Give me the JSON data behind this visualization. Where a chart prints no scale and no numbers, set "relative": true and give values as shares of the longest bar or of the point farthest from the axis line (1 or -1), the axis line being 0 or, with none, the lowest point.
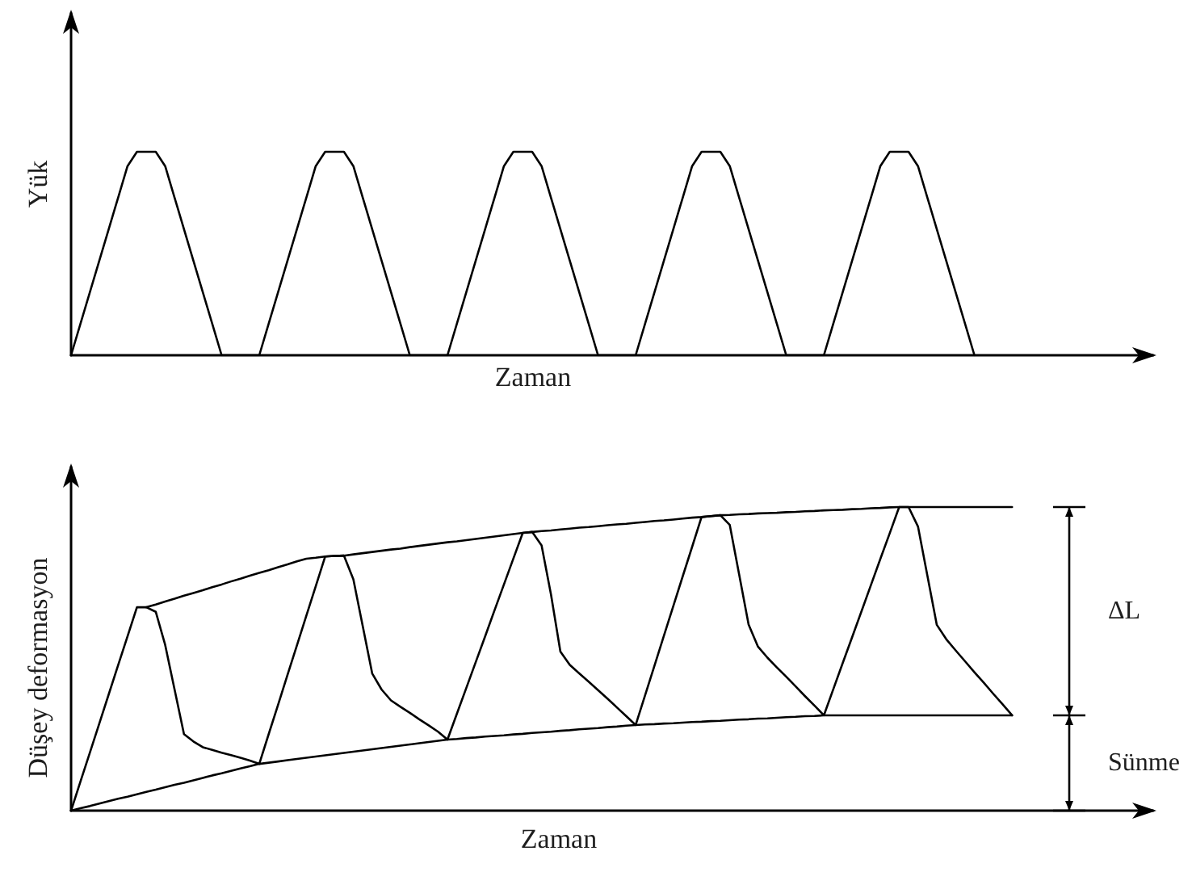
{
  "chart_data": [
    {
      "type": "line",
      "ylabel": "Yük",
      "xlabel": "Zaman",
      "relative": true,
      "tick_labels": false,
      "categories": [
        null,
        null,
        null,
        null,
        null,
        null,
        null,
        null,
        null,
        null,
        null,
        null,
        null,
        null,
        null,
        null,
        null,
        null,
        null,
        null,
        null,
        null,
        null,
        null,
        null,
        null,
        null,
        null,
        null,
        null,
        null,
        null,
        null,
        null,
        null,
        null,
        null,
        null,
        null,
        null,
        null,
        null,
        null,
        null,
        null,
        null,
        null,
        null,
        null,
        null,
        null,
        null,
        null,
        null,
        null,
        null,
        null,
        null,
        null,
        null,
        null,
        null,
        null,
        null,
        null,
        null,
        null,
        null,
        null,
        null,
        null,
        null,
        null,
        null,
        null,
        null,
        null,
        null,
        null,
        null,
        null,
        null,
        null,
        null,
        null,
        null,
        null,
        null,
        null,
        null,
        null,
        null,
        null,
        null,
        null,
        null,
        null,
        null,
        null,
        null,
        null,
        null,
        null,
        null,
        null,
        null,
        null,
        null,
        null,
        null,
        null,
        null,
        null,
        null,
        null,
        null
      ],
      "series": [
        {
          "color": "#000000",
          "values": [
            0,
            0.155,
            0.31,
            0.465,
            0.62,
            0.775,
            0.93,
            1,
            1,
            1,
            0.93,
            0.775,
            0.62,
            0.465,
            0.31,
            0.155,
            0,
            0,
            0,
            0,
            0,
            0.155,
            0.31,
            0.465,
            0.62,
            0.775,
            0.93,
            1,
            1,
            1,
            0.93,
            0.775,
            0.62,
            0.465,
            0.31,
            0.155,
            0,
            0,
            0,
            0,
            0,
            0.155,
            0.31,
            0.465,
            0.62,
            0.775,
            0.93,
            1,
            1,
            1,
            0.93,
            0.775,
            0.62,
            0.465,
            0.31,
            0.155,
            0,
            0,
            0,
            0,
            0,
            0.155,
            0.31,
            0.465,
            0.62,
            0.775,
            0.93,
            1,
            1,
            1,
            0.93,
            0.775,
            0.62,
            0.465,
            0.31,
            0.155,
            0,
            0,
            0,
            0,
            0,
            0.155,
            0.31,
            0.465,
            0.62,
            0.775,
            0.93,
            1,
            1,
            1,
            0.93,
            0.775,
            0.62,
            0.465,
            0.31,
            0.155,
            0,
            null,
            null,
            null,
            null,
            null,
            null,
            null,
            null,
            null,
            null,
            null,
            null,
            null,
            null,
            null,
            null,
            null,
            null,
            null
          ]
        }
      ]
    },
    {
      "type": "line",
      "ylabel": "Düşey deformasyon",
      "xlabel": "Zaman",
      "relative": true,
      "tick_labels": false,
      "categories": [
        null,
        null,
        null,
        null,
        null,
        null,
        null,
        null,
        null,
        null,
        null,
        null,
        null,
        null,
        null,
        null,
        null,
        null,
        null,
        null,
        null,
        null,
        null,
        null,
        null,
        null,
        null,
        null,
        null,
        null,
        null,
        null,
        null,
        null,
        null,
        null,
        null,
        null,
        null,
        null,
        null,
        null,
        null,
        null,
        null,
        null,
        null,
        null,
        null,
        null,
        null,
        null,
        null,
        null,
        null,
        null,
        null,
        null,
        null,
        null,
        null,
        null,
        null,
        null,
        null,
        null,
        null,
        null,
        null,
        null,
        null,
        null,
        null,
        null,
        null,
        null,
        null,
        null,
        null,
        null,
        null,
        null,
        null,
        null,
        null,
        null,
        null,
        null,
        null,
        null,
        null,
        null,
        null,
        null,
        null,
        null,
        null,
        null,
        null,
        null,
        null,
        null,
        null,
        null,
        null,
        null,
        null,
        null,
        null,
        null,
        null,
        null,
        null,
        null,
        null,
        null
      ],
      "annotations": [
        "ΔL",
        "Sünme"
      ],
      "series": [
        {
          "color": "#000000",
          "values": [
            null,
            null,
            null,
            null,
            null,
            null,
            null,
            null,
            0.67,
            0.679,
            0.689,
            0.698,
            0.708,
            0.717,
            0.726,
            0.736,
            0.745,
            0.755,
            0.764,
            0.774,
            0.783,
            0.792,
            0.802,
            0.811,
            0.821,
            0.83,
            0.833,
            0.837,
            0.839,
            0.84,
            0.844,
            0.848,
            0.852,
            0.856,
            0.86,
            0.863,
            0.868,
            0.872,
            0.876,
            0.88,
            0.884,
            0.887,
            0.891,
            0.895,
            0.899,
            0.903,
            0.907,
            0.911,
            0.915,
            0.918,
            0.921,
            0.923,
            0.926,
            0.929,
            0.932,
            0.934,
            0.937,
            0.94,
            0.943,
            0.945,
            0.948,
            0.951,
            0.954,
            0.956,
            0.959,
            0.962,
            0.965,
            0.967,
            0.97,
            0.973,
            0.974,
            0.976,
            0.977,
            0.979,
            0.98,
            0.981,
            0.983,
            0.984,
            0.986,
            0.987,
            0.989,
            0.99,
            0.991,
            0.993,
            0.994,
            0.996,
            0.997,
            0.999,
            1,
            1,
            1,
            1,
            1,
            1,
            1,
            1,
            1,
            1,
            1,
            1,
            1,
            null,
            null,
            null,
            null,
            null,
            null,
            null,
            null,
            null,
            null,
            null,
            null,
            null,
            null,
            null
          ]
        },
        {
          "color": "#000000",
          "values": [
            0,
            0.008,
            0.015,
            0.023,
            0.031,
            0.039,
            0.046,
            0.054,
            0.062,
            0.069,
            0.077,
            0.085,
            0.092,
            0.1,
            0.108,
            0.116,
            0.123,
            0.131,
            0.139,
            0.146,
            0.154,
            0.158,
            0.162,
            0.166,
            0.17,
            0.174,
            0.178,
            0.182,
            0.186,
            0.19,
            0.194,
            0.198,
            0.202,
            0.206,
            0.21,
            0.214,
            0.218,
            0.222,
            0.226,
            0.23,
            0.234,
            0.236,
            0.239,
            0.241,
            0.244,
            0.246,
            0.248,
            0.251,
            0.253,
            0.256,
            0.258,
            0.26,
            0.263,
            0.265,
            0.268,
            0.27,
            0.272,
            0.275,
            0.277,
            0.28,
            0.282,
            0.284,
            0.285,
            0.287,
            0.288,
            0.29,
            0.292,
            0.293,
            0.295,
            0.296,
            0.298,
            0.3,
            0.301,
            0.303,
            0.304,
            0.306,
            0.308,
            0.309,
            0.311,
            0.312,
            0.314,
            0.314,
            0.314,
            0.314,
            0.314,
            0.314,
            0.314,
            0.314,
            0.314,
            0.314,
            0.314,
            0.314,
            0.314,
            0.314,
            0.314,
            0.314,
            0.314,
            0.314,
            0.314,
            0.314,
            0.314,
            null,
            null,
            null,
            null,
            null,
            null,
            null,
            null,
            null,
            null,
            null,
            null,
            null,
            null,
            null
          ]
        },
        {
          "color": "#000000",
          "values": [
            0,
            0.096,
            0.191,
            0.287,
            0.383,
            0.479,
            0.574,
            0.67,
            0.67,
            0.655,
            0.546,
            0.399,
            0.252,
            0.228,
            0.209,
            0.2,
            0.191,
            0.183,
            0.174,
            0.165,
            0.154,
            0.252,
            0.349,
            0.447,
            0.544,
            0.642,
            0.739,
            0.837,
            0.839,
            0.84,
            0.762,
            0.607,
            0.452,
            0.399,
            0.363,
            0.342,
            0.322,
            0.301,
            0.281,
            0.26,
            0.234,
            0.319,
            0.404,
            0.489,
            0.574,
            0.66,
            0.745,
            0.83,
            0.915,
            0.918,
            0.874,
            0.712,
            0.524,
            0.48,
            0.452,
            0.425,
            0.397,
            0.369,
            0.34,
            0.311,
            0.282,
            0.38,
            0.478,
            0.576,
            0.674,
            0.772,
            0.869,
            0.967,
            0.97,
            0.973,
            0.941,
            0.777,
            0.613,
            0.54,
            0.504,
            0.472,
            0.441,
            0.409,
            0.377,
            0.346,
            0.314,
            0.4,
            0.486,
            0.571,
            0.657,
            0.743,
            0.829,
            0.914,
            1,
            1,
            0.936,
            0.774,
            0.612,
            0.565,
            0.528,
            0.492,
            0.456,
            0.421,
            0.385,
            0.35,
            0.314,
            null,
            null,
            null,
            null,
            null,
            null,
            null,
            null,
            null,
            null,
            null,
            null,
            null,
            null,
            null
          ]
        }
      ]
    }
  ]
}
